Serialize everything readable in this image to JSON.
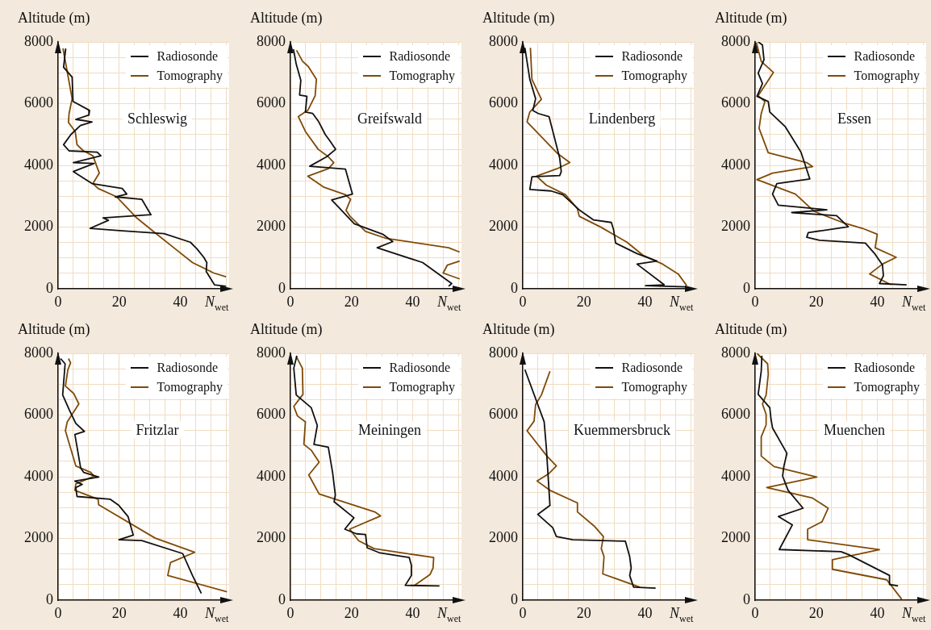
{
  "chart_data": [
    {
      "type": "line",
      "title": "Schleswig",
      "xlabel": "N$_{wet}$",
      "ylabel": "Altitude (m)",
      "xlim": [
        0,
        56
      ],
      "ylim": [
        0,
        8000
      ],
      "xticks": [
        0,
        {
          "value": 5,
          "label": null
        },
        {
          "value": 10,
          "label": null
        },
        {
          "value": 15,
          "label": null
        },
        20,
        {
          "value": 25,
          "label": null
        },
        {
          "value": 30,
          "label": null
        },
        {
          "value": 35,
          "label": null
        },
        40,
        {
          "value": 45,
          "label": null
        },
        {
          "value": 50,
          "label": null
        },
        {
          "value": 55,
          "label": null
        }
      ],
      "yticks": [
        0,
        {
          "value": 500,
          "label": null
        },
        {
          "value": 1000,
          "label": null
        },
        {
          "value": 1500,
          "label": null
        },
        2000,
        {
          "value": 2500,
          "label": null
        },
        {
          "value": 3000,
          "label": null
        },
        {
          "value": 3500,
          "label": null
        },
        4000,
        {
          "value": 4500,
          "label": null
        },
        {
          "value": 5000,
          "label": null
        },
        {
          "value": 5500,
          "label": null
        },
        6000,
        {
          "value": 6500,
          "label": null
        },
        {
          "value": 7000,
          "label": null
        },
        {
          "value": 7500,
          "label": null
        },
        8000
      ],
      "grid": true,
      "legend": "top right",
      "series": [
        {
          "name": "Radiosonde",
          "color": "#111111",
          "x": [
            2.5,
            1.8,
            4.6,
            4.9,
            10.3,
            10.1,
            5.8,
            11.1,
            7.3,
            4.2,
            1.8,
            3.6,
            12.8,
            14,
            5,
            11.8,
            5,
            11.1,
            21,
            22.5,
            18.7,
            27.4,
            30.4,
            14.7,
            16.5,
            10.5,
            21,
            34.7,
            43.3,
            45.5,
            47.7,
            48.7,
            48.5,
            51.2,
            55
          ],
          "values": [
            7790,
            7180,
            6860,
            6070,
            5780,
            5630,
            5490,
            5410,
            5290,
            5000,
            4670,
            4470,
            4430,
            4310,
            4090,
            4060,
            3800,
            3410,
            3250,
            3070,
            2980,
            2900,
            2400,
            2300,
            2220,
            1960,
            1880,
            1790,
            1510,
            1290,
            1020,
            850,
            560,
            130,
            80
          ]
        },
        {
          "name": "Tomography",
          "color": "#7f4a08",
          "x": [
            1.6,
            4.6,
            3.6,
            3.4,
            5.6,
            6.2,
            8.3,
            11.4,
            13.5,
            11.4,
            13.1,
            19.2,
            25.7,
            32.3,
            37.9,
            44,
            51,
            55
          ],
          "values": [
            7790,
            6160,
            5680,
            5390,
            5100,
            4670,
            4470,
            4310,
            3750,
            3410,
            3250,
            2980,
            2300,
            1770,
            1330,
            850,
            510,
            390
          ]
        }
      ]
    },
    {
      "type": "line",
      "title": "Greifswald",
      "xlabel": "N$_{wet}$",
      "ylabel": "Altitude (m)",
      "xlim": [
        0,
        56
      ],
      "ylim": [
        0,
        8000
      ],
      "xticks": [
        0,
        {
          "value": 5,
          "label": null
        },
        {
          "value": 10,
          "label": null
        },
        {
          "value": 15,
          "label": null
        },
        20,
        {
          "value": 25,
          "label": null
        },
        {
          "value": 30,
          "label": null
        },
        {
          "value": 35,
          "label": null
        },
        40,
        {
          "value": 45,
          "label": null
        },
        {
          "value": 50,
          "label": null
        },
        {
          "value": 55,
          "label": null
        }
      ],
      "yticks": [
        0,
        {
          "value": 500,
          "label": null
        },
        {
          "value": 1000,
          "label": null
        },
        {
          "value": 1500,
          "label": null
        },
        2000,
        {
          "value": 2500,
          "label": null
        },
        {
          "value": 3000,
          "label": null
        },
        {
          "value": 3500,
          "label": null
        },
        4000,
        {
          "value": 4500,
          "label": null
        },
        {
          "value": 5000,
          "label": null
        },
        {
          "value": 5500,
          "label": null
        },
        6000,
        {
          "value": 6500,
          "label": null
        },
        {
          "value": 7000,
          "label": null
        },
        {
          "value": 7500,
          "label": null
        },
        8000
      ],
      "grid": true,
      "legend": "top right",
      "series": [
        {
          "name": "Radiosonde",
          "color": "#111111",
          "x": [
            1,
            1.9,
            3.4,
            3,
            5.4,
            4.9,
            7.3,
            9.1,
            11.4,
            12.8,
            14.8,
            11.9,
            6.3,
            18,
            20.3,
            13.5,
            20.9,
            30.2,
            33.5,
            28.4,
            43.3,
            52.8,
            51.8
          ],
          "values": [
            7760,
            7280,
            6760,
            6280,
            6240,
            5730,
            5680,
            5440,
            5000,
            4810,
            4520,
            4280,
            3970,
            3880,
            3070,
            2880,
            2110,
            1770,
            1530,
            1330,
            850,
            170,
            80
          ]
        },
        {
          "name": "Tomography",
          "color": "#7f4a08",
          "x": [
            2,
            4,
            5.8,
            8.5,
            8.1,
            5.8,
            2.6,
            4.9,
            9.1,
            12.4,
            14.2,
            12.4,
            5.7,
            11,
            18,
            19.7,
            18.2,
            19.5,
            24.6,
            31.1,
            51.8,
            55.4,
            null,
            55.4,
            51.4,
            50,
            55.4
          ],
          "values": [
            7730,
            7370,
            7210,
            6790,
            6260,
            5800,
            5580,
            5100,
            4520,
            4280,
            4090,
            3890,
            3650,
            3290,
            3050,
            2900,
            2540,
            2350,
            1860,
            1640,
            1330,
            1190,
            null,
            900,
            770,
            510,
            320
          ]
        }
      ]
    },
    {
      "type": "line",
      "title": "Lindenberg",
      "xlabel": "N$_{wet}$",
      "ylabel": "Altitude (m)",
      "xlim": [
        0,
        56
      ],
      "ylim": [
        0,
        8000
      ],
      "xticks": [
        0,
        {
          "value": 5,
          "label": null
        },
        {
          "value": 10,
          "label": null
        },
        {
          "value": 15,
          "label": null
        },
        20,
        {
          "value": 25,
          "label": null
        },
        {
          "value": 30,
          "label": null
        },
        {
          "value": 35,
          "label": null
        },
        40,
        {
          "value": 45,
          "label": null
        },
        {
          "value": 50,
          "label": null
        },
        {
          "value": 55,
          "label": null
        }
      ],
      "yticks": [
        0,
        {
          "value": 500,
          "label": null
        },
        {
          "value": 1000,
          "label": null
        },
        {
          "value": 1500,
          "label": null
        },
        2000,
        {
          "value": 2500,
          "label": null
        },
        {
          "value": 3000,
          "label": null
        },
        {
          "value": 3500,
          "label": null
        },
        4000,
        {
          "value": 4500,
          "label": null
        },
        {
          "value": 5000,
          "label": null
        },
        {
          "value": 5500,
          "label": null
        },
        6000,
        {
          "value": 6500,
          "label": null
        },
        {
          "value": 7000,
          "label": null
        },
        {
          "value": 7500,
          "label": null
        },
        8000
      ],
      "grid": true,
      "legend": "top right",
      "series": [
        {
          "name": "Radiosonde",
          "color": "#111111",
          "x": [
            0.7,
            2.3,
            4.2,
            3.3,
            5.1,
            8.6,
            12.1,
            12.6,
            12.1,
            3,
            2.3,
            9.3,
            13.1,
            18.7,
            23.2,
            29,
            29.7,
            30.4,
            37.4,
            43.9,
            37.4,
            46.3,
            40.2,
            53.7
          ],
          "values": [
            7810,
            6790,
            6160,
            5780,
            5680,
            5580,
            4230,
            3800,
            3670,
            3630,
            3220,
            3170,
            3050,
            2540,
            2230,
            2150,
            1930,
            1480,
            1140,
            900,
            800,
            130,
            100,
            60
          ]
        },
        {
          "name": "Tomography",
          "color": "#7f4a08",
          "x": [
            2.5,
            3,
            6.1,
            2.3,
            1.4,
            11.2,
            15.4,
            11.2,
            4.5,
            7.7,
            14,
            17.9,
            18.5,
            25.7,
            34.1,
            39.3,
            45.8,
            50.9,
            53.7
          ],
          "values": [
            7810,
            6790,
            6140,
            5730,
            5410,
            4400,
            4090,
            3890,
            3650,
            3360,
            3050,
            2590,
            2350,
            1990,
            1510,
            1090,
            800,
            480,
            100
          ]
        }
      ]
    },
    {
      "type": "line",
      "title": "Essen",
      "xlabel": "N$_{wet}$",
      "ylabel": "Altitude (m)",
      "xlim": [
        0,
        56
      ],
      "ylim": [
        0,
        8000
      ],
      "xticks": [
        0,
        {
          "value": 5,
          "label": null
        },
        {
          "value": 10,
          "label": null
        },
        {
          "value": 15,
          "label": null
        },
        20,
        {
          "value": 25,
          "label": null
        },
        {
          "value": 30,
          "label": null
        },
        {
          "value": 35,
          "label": null
        },
        40,
        {
          "value": 45,
          "label": null
        },
        {
          "value": 50,
          "label": null
        },
        {
          "value": 55,
          "label": null
        }
      ],
      "yticks": [
        0,
        {
          "value": 500,
          "label": null
        },
        {
          "value": 1000,
          "label": null
        },
        {
          "value": 1500,
          "label": null
        },
        2000,
        {
          "value": 2500,
          "label": null
        },
        {
          "value": 3000,
          "label": null
        },
        {
          "value": 3500,
          "label": null
        },
        4000,
        {
          "value": 4500,
          "label": null
        },
        {
          "value": 5000,
          "label": null
        },
        {
          "value": 5500,
          "label": null
        },
        6000,
        {
          "value": 6500,
          "label": null
        },
        {
          "value": 7000,
          "label": null
        },
        {
          "value": 7500,
          "label": null
        },
        8000
      ],
      "grid": true,
      "legend": "top right",
      "series": [
        {
          "name": "Radiosonde",
          "color": "#111111",
          "x": [
            1,
            2.4,
            2.9,
            1,
            2.4,
            0.6,
            4.3,
            4.8,
            9.9,
            15,
            17.9,
            7.1,
            5.7,
            7.6,
            23.5,
            12,
            26.7,
            30.5,
            17.4,
            16.9,
            21.1,
            36.1,
            39.3,
            41.7,
            42,
            40.7,
            49.6
          ],
          "values": [
            8000,
            7900,
            7420,
            6990,
            6650,
            6240,
            6070,
            5730,
            5250,
            4430,
            3560,
            3410,
            3070,
            2710,
            2560,
            2470,
            2370,
            2010,
            1820,
            1670,
            1570,
            1480,
            1120,
            770,
            420,
            170,
            130
          ]
        },
        {
          "name": "Tomography",
          "color": "#7f4a08",
          "x": [
            0.4,
            2,
            6,
            1,
            3.2,
            2,
            1.3,
            4.3,
            16.9,
            18.8,
            5.7,
            0.6,
            13.2,
            19.3,
            28.6,
            35.1,
            40,
            39.3,
            46.2,
            41.7,
            37.5,
            44.5
          ],
          "values": [
            7980,
            7370,
            7010,
            6260,
            6070,
            5680,
            5200,
            4410,
            4090,
            3960,
            3750,
            3540,
            3070,
            2510,
            2150,
            1960,
            1770,
            1330,
            1020,
            800,
            480,
            130
          ]
        }
      ]
    },
    {
      "type": "line",
      "title": "Fritzlar",
      "xlabel": "N$_{wet}$",
      "ylabel": "Altitude (m)",
      "xlim": [
        0,
        56
      ],
      "ylim": [
        0,
        8000
      ],
      "xticks": [
        0,
        {
          "value": 5,
          "label": null
        },
        {
          "value": 10,
          "label": null
        },
        {
          "value": 15,
          "label": null
        },
        20,
        {
          "value": 25,
          "label": null
        },
        {
          "value": 30,
          "label": null
        },
        {
          "value": 35,
          "label": null
        },
        40,
        {
          "value": 45,
          "label": null
        },
        {
          "value": 50,
          "label": null
        },
        {
          "value": 55,
          "label": null
        }
      ],
      "yticks": [
        0,
        {
          "value": 500,
          "label": null
        },
        {
          "value": 1000,
          "label": null
        },
        {
          "value": 1500,
          "label": null
        },
        2000,
        {
          "value": 2500,
          "label": null
        },
        {
          "value": 3000,
          "label": null
        },
        {
          "value": 3500,
          "label": null
        },
        4000,
        {
          "value": 4500,
          "label": null
        },
        {
          "value": 5000,
          "label": null
        },
        {
          "value": 5500,
          "label": null
        },
        6000,
        {
          "value": 6500,
          "label": null
        },
        {
          "value": 7000,
          "label": null
        },
        {
          "value": 7500,
          "label": null
        },
        8000
      ],
      "grid": true,
      "legend": "top right",
      "series": [
        {
          "name": "Radiosonde",
          "color": "#111111",
          "x": [
            0.8,
            2.3,
            1.5,
            3.7,
            5.8,
            8.6,
            5.5,
            7.4,
            8.4,
            13.3,
            5.5,
            7.9,
            5.8,
            6.2,
            17.1,
            19.9,
            22.9,
            24.6,
            19.9,
            27.4,
            40.8,
            44,
            46.9
          ],
          "values": [
            7830,
            7660,
            6650,
            6160,
            5730,
            5470,
            5370,
            4280,
            4140,
            3990,
            3860,
            3750,
            3650,
            3360,
            3270,
            3070,
            2710,
            2110,
            1960,
            1930,
            1510,
            800,
            220
          ]
        },
        {
          "name": "Tomography",
          "color": "#7f4a08",
          "x": [
            3.4,
            4.1,
            3.2,
            2.4,
            5.1,
            6.8,
            3,
            2.4,
            5.8,
            10.7,
            11.8,
            5.8,
            5.5,
            13.1,
            13.3,
            31.8,
            44.7,
            36.8,
            35.9,
            55.3
          ],
          "values": [
            7830,
            7690,
            7470,
            6940,
            6700,
            6360,
            5780,
            5490,
            4350,
            4140,
            4020,
            3770,
            3560,
            3270,
            3090,
            2010,
            1550,
            1220,
            800,
            270
          ]
        }
      ]
    },
    {
      "type": "line",
      "title": "Meiningen",
      "xlabel": "N$_{wet}$",
      "ylabel": "Altitude (m)",
      "xlim": [
        0,
        56
      ],
      "ylim": [
        0,
        8000
      ],
      "xticks": [
        0,
        {
          "value": 5,
          "label": null
        },
        {
          "value": 10,
          "label": null
        },
        {
          "value": 15,
          "label": null
        },
        20,
        {
          "value": 25,
          "label": null
        },
        {
          "value": 30,
          "label": null
        },
        {
          "value": 35,
          "label": null
        },
        40,
        {
          "value": 45,
          "label": null
        },
        {
          "value": 50,
          "label": null
        },
        {
          "value": 55,
          "label": null
        }
      ],
      "yticks": [
        0,
        {
          "value": 500,
          "label": null
        },
        {
          "value": 1000,
          "label": null
        },
        {
          "value": 1500,
          "label": null
        },
        2000,
        {
          "value": 2500,
          "label": null
        },
        {
          "value": 3000,
          "label": null
        },
        {
          "value": 3500,
          "label": null
        },
        4000,
        {
          "value": 4500,
          "label": null
        },
        {
          "value": 5000,
          "label": null
        },
        {
          "value": 5500,
          "label": null
        },
        6000,
        {
          "value": 6500,
          "label": null
        },
        {
          "value": 7000,
          "label": null
        },
        {
          "value": 7500,
          "label": null
        },
        8000
      ],
      "grid": true,
      "legend": "top right",
      "series": [
        {
          "name": "Radiosonde",
          "color": "#111111",
          "x": [
            2.1,
            1.1,
            1.9,
            6.8,
            8.8,
            7.7,
            12.4,
            13.8,
            14.7,
            14.3,
            20.8,
            17.8,
            21.6,
            24.6,
            25.1,
            29.3,
            38.9,
            39.6,
            39.6,
            37.6,
            48.8
          ],
          "values": [
            7920,
            7520,
            6650,
            6240,
            5660,
            5050,
            4960,
            4140,
            3410,
            3190,
            2670,
            2300,
            2150,
            2130,
            1700,
            1530,
            1380,
            1140,
            800,
            480,
            460
          ]
        },
        {
          "name": "Tomography",
          "color": "#7f4a08",
          "x": [
            1.9,
            3.9,
            4.1,
            1.1,
            2.3,
            4.9,
            4.4,
            6.8,
            9.4,
            6,
            9.4,
            27.6,
            29.5,
            19.4,
            22.3,
            27.4,
            46.9,
            46.7,
            45.7,
            40.6
          ],
          "values": [
            7900,
            7520,
            6670,
            6280,
            5970,
            5780,
            5050,
            4860,
            4470,
            4060,
            3440,
            2860,
            2730,
            2300,
            1930,
            1670,
            1380,
            1040,
            830,
            480
          ]
        }
      ]
    },
    {
      "type": "line",
      "title": "Kuemmersbruck",
      "xlabel": "N$_{wet}$",
      "ylabel": "Altitude (m)",
      "xlim": [
        0,
        56
      ],
      "ylim": [
        0,
        8000
      ],
      "xticks": [
        0,
        {
          "value": 5,
          "label": null
        },
        {
          "value": 10,
          "label": null
        },
        {
          "value": 15,
          "label": null
        },
        20,
        {
          "value": 25,
          "label": null
        },
        {
          "value": 30,
          "label": null
        },
        {
          "value": 35,
          "label": null
        },
        40,
        {
          "value": 45,
          "label": null
        },
        {
          "value": 50,
          "label": null
        },
        {
          "value": 55,
          "label": null
        }
      ],
      "yticks": [
        0,
        {
          "value": 500,
          "label": null
        },
        {
          "value": 1000,
          "label": null
        },
        {
          "value": 1500,
          "label": null
        },
        2000,
        {
          "value": 2500,
          "label": null
        },
        {
          "value": 3000,
          "label": null
        },
        {
          "value": 3500,
          "label": null
        },
        4000,
        {
          "value": 4500,
          "label": null
        },
        {
          "value": 5000,
          "label": null
        },
        {
          "value": 5500,
          "label": null
        },
        6000,
        {
          "value": 6500,
          "label": null
        },
        {
          "value": 7000,
          "label": null
        },
        {
          "value": 7500,
          "label": null
        },
        8000
      ],
      "grid": true,
      "legend": "top right",
      "series": [
        {
          "name": "Radiosonde",
          "color": "#111111",
          "x": [
            0.7,
            7,
            7.7,
            8.9,
            4.9,
            9.8,
            11,
            16.4,
            33.6,
            35,
            35.5,
            35,
            36.3,
            43.5
          ],
          "values": [
            7470,
            5780,
            4960,
            3070,
            2780,
            2350,
            2060,
            1960,
            1910,
            1410,
            1040,
            800,
            420,
            390
          ]
        },
        {
          "name": "Tomography",
          "color": "#7f4a08",
          "x": [
            8.9,
            6.1,
            4.2,
            3.7,
            1.4,
            7.9,
            11,
            8.4,
            4.7,
            8.9,
            17.9,
            17.9,
            23.4,
            26.4,
            25.7,
            26.6,
            26.2,
            38.3
          ],
          "values": [
            7420,
            6650,
            6340,
            5800,
            5490,
            4670,
            4350,
            4090,
            3860,
            3560,
            3150,
            2860,
            2400,
            2060,
            1670,
            1410,
            850,
            420
          ]
        }
      ]
    },
    {
      "type": "line",
      "title": "Muenchen",
      "xlabel": "N$_{wet}$",
      "ylabel": "Altitude (m)",
      "xlim": [
        0,
        56
      ],
      "ylim": [
        0,
        8000
      ],
      "xticks": [
        0,
        {
          "value": 5,
          "label": null
        },
        {
          "value": 10,
          "label": null
        },
        {
          "value": 15,
          "label": null
        },
        20,
        {
          "value": 25,
          "label": null
        },
        {
          "value": 30,
          "label": null
        },
        {
          "value": 35,
          "label": null
        },
        40,
        {
          "value": 45,
          "label": null
        },
        {
          "value": 50,
          "label": null
        },
        {
          "value": 55,
          "label": null
        }
      ],
      "yticks": [
        0,
        {
          "value": 500,
          "label": null
        },
        {
          "value": 1000,
          "label": null
        },
        {
          "value": 1500,
          "label": null
        },
        2000,
        {
          "value": 2500,
          "label": null
        },
        {
          "value": 3000,
          "label": null
        },
        {
          "value": 3500,
          "label": null
        },
        4000,
        {
          "value": 4500,
          "label": null
        },
        {
          "value": 5000,
          "label": null
        },
        {
          "value": 5500,
          "label": null
        },
        6000,
        {
          "value": 6500,
          "label": null
        },
        {
          "value": 7000,
          "label": null
        },
        {
          "value": 7500,
          "label": null
        },
        8000
      ],
      "grid": true,
      "legend": "top right",
      "series": [
        {
          "name": "Radiosonde",
          "color": "#111111",
          "x": [
            2.2,
            2,
            1,
            4.8,
            5.2,
            5.7,
            10.4,
            9.4,
            9,
            10.8,
            15.7,
            7.6,
            12.2,
            7.9,
            28.1,
            30.5,
            44,
            44,
            46.8
          ],
          "values": [
            7920,
            7420,
            6670,
            6240,
            5870,
            5580,
            4760,
            4330,
            4020,
            3560,
            2980,
            2710,
            2440,
            1640,
            1570,
            1480,
            800,
            510,
            460
          ]
        },
        {
          "name": "Tomography",
          "color": "#7f4a08",
          "x": [
            0.6,
            4.1,
            4.3,
            3.6,
            2.4,
            3.6,
            3.6,
            2,
            2,
            6.2,
            20.2,
            3.8,
            18.8,
            23.9,
            21.9,
            17.2,
            17.2,
            40.7,
            25.3,
            25.3,
            43.1,
            48
          ],
          "values": [
            8000,
            7660,
            7320,
            6650,
            6360,
            6020,
            5680,
            5290,
            4670,
            4330,
            3990,
            3650,
            3310,
            2980,
            2540,
            2300,
            1960,
            1640,
            1310,
            1000,
            660,
            30
          ]
        }
      ]
    }
  ]
}
